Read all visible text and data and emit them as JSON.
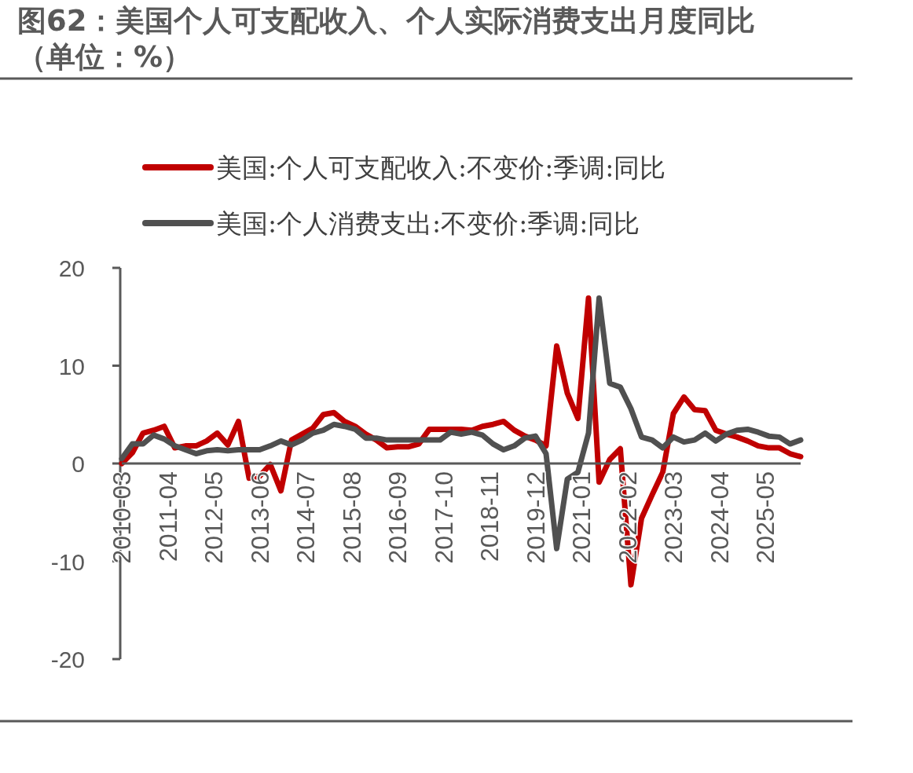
{
  "chart_data": {
    "type": "line",
    "title": "图62：美国个人可支配收入、个人实际消费支出月度同比（单位：%）",
    "x": [
      "2010-03",
      "2010-06",
      "2010-09",
      "2010-12",
      "2011-03",
      "2011-06",
      "2011-09",
      "2011-12",
      "2012-03",
      "2012-06",
      "2012-09",
      "2012-12",
      "2013-03",
      "2013-06",
      "2013-09",
      "2013-12",
      "2014-03",
      "2014-06",
      "2014-09",
      "2014-12",
      "2015-03",
      "2015-06",
      "2015-09",
      "2015-12",
      "2016-03",
      "2016-06",
      "2016-09",
      "2016-12",
      "2017-03",
      "2017-06",
      "2017-09",
      "2017-12",
      "2018-03",
      "2018-06",
      "2018-09",
      "2018-12",
      "2019-03",
      "2019-06",
      "2019-09",
      "2019-12",
      "2020-03",
      "2020-06",
      "2020-09",
      "2020-12",
      "2021-03",
      "2021-06",
      "2021-09",
      "2021-12",
      "2022-03",
      "2022-06",
      "2022-09",
      "2022-12",
      "2023-03",
      "2023-06",
      "2023-09",
      "2023-12",
      "2024-03",
      "2024-06",
      "2024-09",
      "2024-12",
      "2025-03",
      "2025-06",
      "2025-09",
      "2025-12",
      "2026-03"
    ],
    "series": [
      {
        "name": "美国:个人可支配收入:不变价:季调:同比",
        "color": "#c00000",
        "values": [
          0,
          1.1,
          3.1,
          3.4,
          3.8,
          1.6,
          1.8,
          1.8,
          2.3,
          3.1,
          1.9,
          4.3,
          -1.5,
          -1.3,
          -0.1,
          -2.8,
          2.4,
          3.0,
          3.6,
          5.0,
          5.2,
          4.3,
          3.8,
          3.0,
          2.4,
          1.6,
          1.7,
          1.7,
          2.0,
          3.5,
          3.5,
          3.5,
          3.5,
          3.4,
          3.8,
          4.0,
          4.3,
          3.4,
          2.8,
          2.4,
          1.8,
          12.0,
          7.2,
          4.6,
          16.9,
          -1.9,
          0.4,
          1.5,
          -12.4,
          -5.6,
          -3.2,
          -0.9,
          5.1,
          6.8,
          5.5,
          5.4,
          3.4,
          3.0,
          2.7,
          2.3,
          1.8,
          1.6,
          1.6,
          1.0,
          0.7
        ]
      },
      {
        "name": "美国:个人消费支出:不变价:季调:同比",
        "color": "#505050",
        "values": [
          0.5,
          2.0,
          2.0,
          2.9,
          2.5,
          1.8,
          1.4,
          1.0,
          1.3,
          1.4,
          1.3,
          1.4,
          1.4,
          1.4,
          1.8,
          2.3,
          1.9,
          2.4,
          3.1,
          3.4,
          4.0,
          3.8,
          3.5,
          2.6,
          2.6,
          2.4,
          2.4,
          2.4,
          2.4,
          2.4,
          2.4,
          3.2,
          3.0,
          3.2,
          2.9,
          2.0,
          1.4,
          1.8,
          2.6,
          2.8,
          1.0,
          -8.7,
          -1.6,
          -0.9,
          3.1,
          16.9,
          8.2,
          7.8,
          5.6,
          2.7,
          2.4,
          1.6,
          2.7,
          2.2,
          2.4,
          3.1,
          2.3,
          3.0,
          3.4,
          3.5,
          3.2,
          2.8,
          2.7,
          2.0,
          2.4
        ]
      }
    ],
    "xlim": [
      "2010-03",
      "2026-03"
    ],
    "xticks": [
      "2010-03",
      "2011-04",
      "2012-05",
      "2013-06",
      "2014-07",
      "2015-08",
      "2016-09",
      "2017-10",
      "2018-11",
      "2019-12",
      "2021-01",
      "2022-02",
      "2023-03",
      "2024-04",
      "2025-05"
    ],
    "ylim": [
      -20,
      20
    ],
    "yticks": [
      -20,
      -10,
      0,
      10,
      20
    ],
    "legend": "top"
  }
}
